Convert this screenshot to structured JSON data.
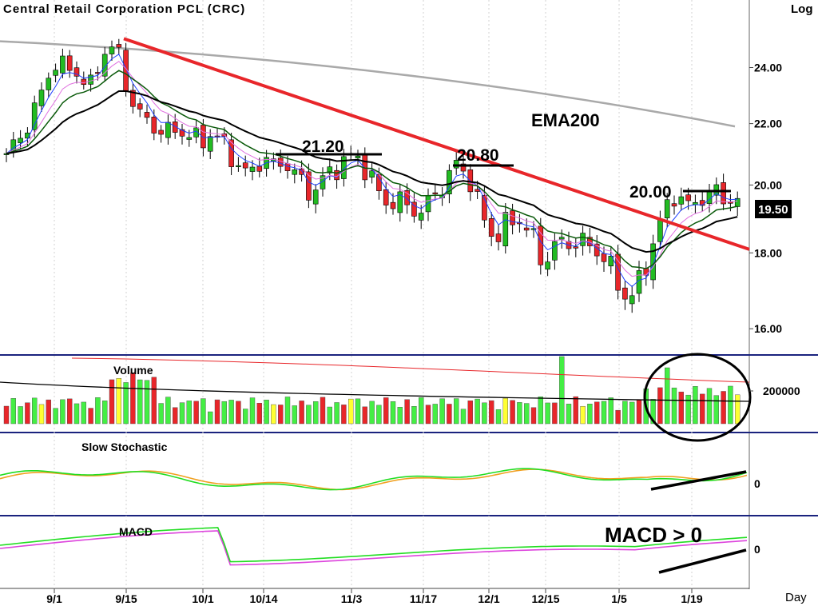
{
  "title": "Central Retail Corporation PCL (CRC)",
  "scale_label": "Log",
  "x_unit_label": "Day",
  "last_price_label": "19.50",
  "annotations": {
    "ema_label": "EMA200",
    "resistance_1": "21.20",
    "resistance_2": "20.80",
    "resistance_3": "20.00",
    "macd_note": "MACD > 0"
  },
  "panels": {
    "volume_label": "Volume",
    "volume_tick": "200000",
    "stoch_label": "Slow  Stochastic",
    "stoch_tick": "0",
    "macd_label": "MACD",
    "macd_tick": "0"
  },
  "chart_data": {
    "type": "candlestick",
    "scale": "log",
    "y_ticks": [
      {
        "value": 16,
        "label": "16.00"
      },
      {
        "value": 18,
        "label": "18.00"
      },
      {
        "value": 20,
        "label": "20.00"
      },
      {
        "value": 22,
        "label": "22.00"
      },
      {
        "value": 24,
        "label": "24.00"
      }
    ],
    "ylim": [
      15.4,
      26.0
    ],
    "x_ticks": [
      "9/1",
      "9/15",
      "10/1",
      "10/14",
      "11/3",
      "11/17",
      "12/1",
      "12/15",
      "1/5",
      "1/19"
    ],
    "close_path": [
      21.0,
      21.4,
      22.2,
      23.2,
      24.2,
      24.0,
      23.7,
      23.3,
      24.6,
      24.9,
      23.0,
      22.3,
      21.9,
      21.7,
      21.8,
      21.6,
      21.4,
      21.7,
      21.2,
      20.6,
      20.3,
      20.9,
      20.6,
      20.7,
      20.2,
      19.7,
      20.2,
      20.5,
      20.9,
      20.8,
      20.2,
      19.4,
      19.6,
      19.3,
      19.2,
      19.6,
      20.1,
      20.7,
      20.2,
      19.1,
      18.4,
      18.8,
      19.0,
      18.6,
      17.7,
      18.2,
      18.3,
      18.3,
      18.2,
      17.9,
      17.3,
      16.7,
      17.2,
      18.2,
      19.2,
      19.8,
      19.3,
      19.6,
      19.8,
      19.6,
      19.5
    ],
    "ema200_start": 25.0,
    "ema200_end": 21.6,
    "trendline": {
      "start": 25.1,
      "end": 18.1
    },
    "volume_ref": 200000
  }
}
